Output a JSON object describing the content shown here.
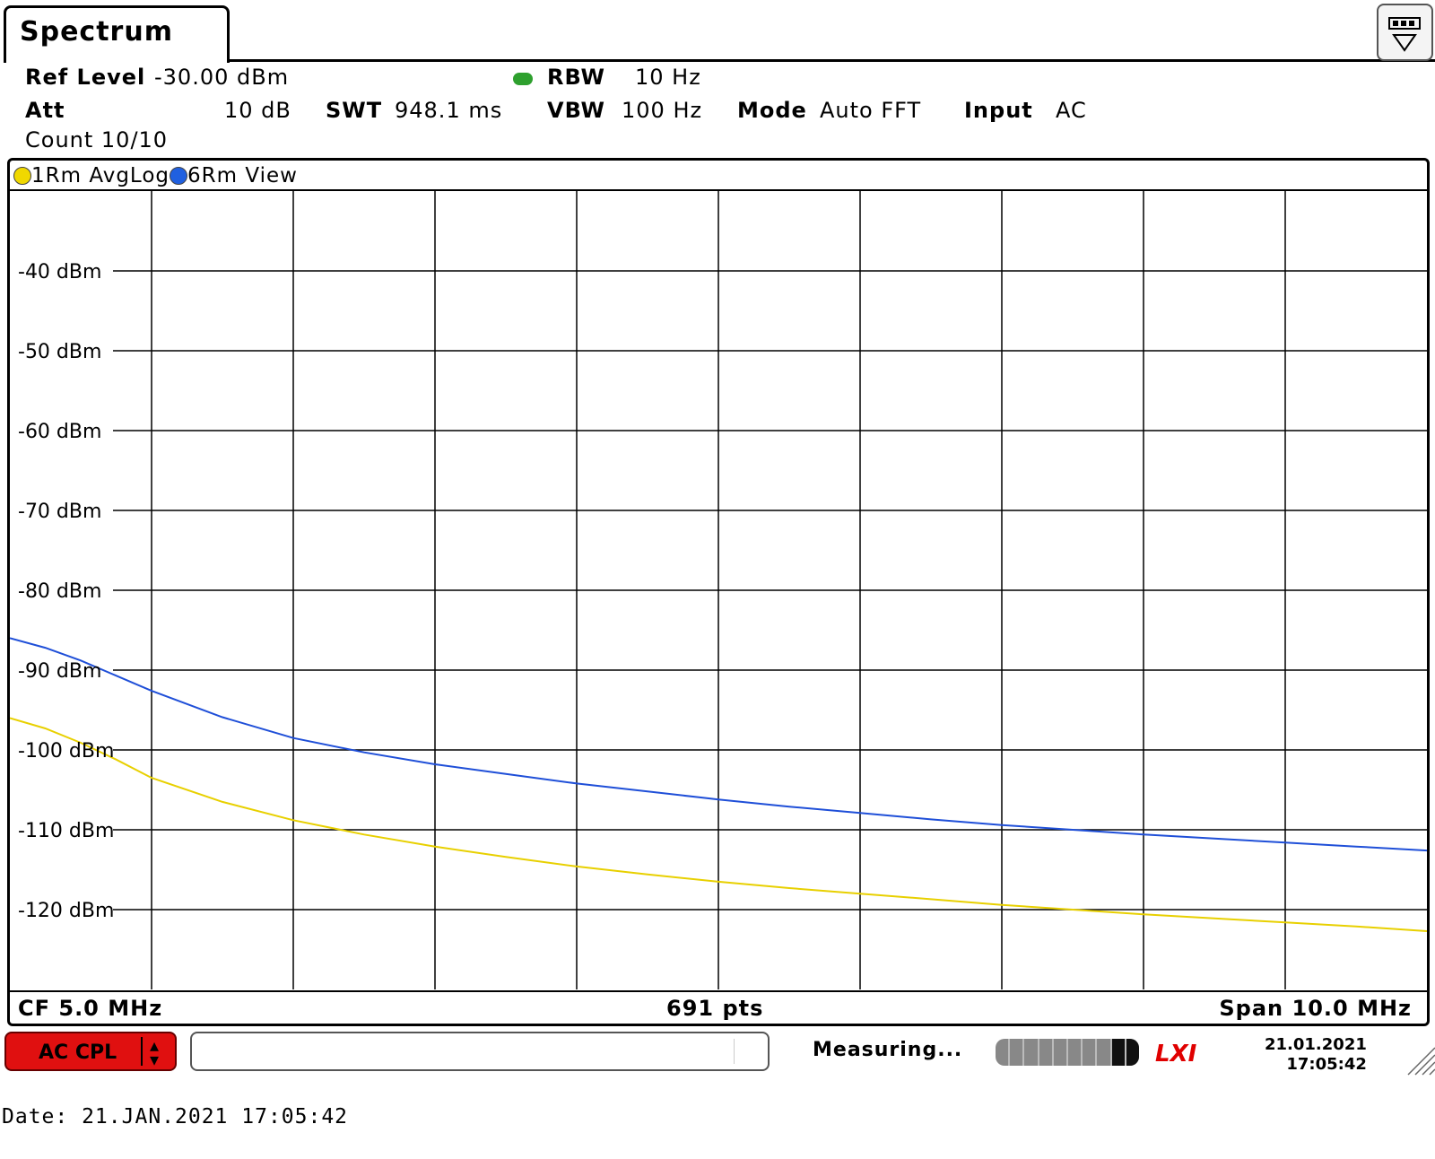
{
  "tab": {
    "title": "Spectrum"
  },
  "header": {
    "ref_level_label": "Ref Level",
    "ref_level_value": "-30.00 dBm",
    "rbw_label": "RBW",
    "rbw_value": "10 Hz",
    "att_label": "Att",
    "att_value": "10 dB",
    "swt_label": "SWT",
    "swt_value": "948.1 ms",
    "vbw_label": "VBW",
    "vbw_value": "100 Hz",
    "mode_label": "Mode",
    "mode_value": "Auto FFT",
    "input_label": "Input",
    "input_value": "AC",
    "count": "Count 10/10"
  },
  "traces": [
    {
      "label": "1Rm AvgLog",
      "color": "#f0d800"
    },
    {
      "label": "6Rm View",
      "color": "#2060e0"
    }
  ],
  "footer": {
    "cf": "CF 5.0 MHz",
    "points": "691 pts",
    "span": "Span 10.0 MHz"
  },
  "status": {
    "ac_cpl": "AC CPL",
    "measuring": "Measuring...",
    "lxi": "LXI",
    "date": "21.01.2021",
    "time": "17:05:42"
  },
  "date_line": "Date: 21.JAN.2021  17:05:42",
  "colors": {
    "trace_yellow": "#e8d000",
    "trace_blue": "#1f4fd8",
    "grid": "#000000"
  },
  "chart_data": {
    "type": "line",
    "x_center_mhz": 5.0,
    "x_span_mhz": 10.0,
    "xlim": [
      0,
      10
    ],
    "ylim": [
      -130,
      -30
    ],
    "y_ticks": [
      -40,
      -50,
      -60,
      -70,
      -80,
      -90,
      -100,
      -110,
      -120
    ],
    "y_tick_labels": [
      "-40 dBm",
      "-50 dBm",
      "-60 dBm",
      "-70 dBm",
      "-80 dBm",
      "-90 dBm",
      "-100 dBm",
      "-110 dBm",
      "-120 dBm"
    ],
    "grid": true,
    "x": [
      0,
      0.25,
      0.5,
      0.75,
      1,
      1.5,
      2,
      2.5,
      3,
      3.5,
      4,
      4.5,
      5,
      5.5,
      6,
      6.5,
      7,
      7.5,
      8,
      8.5,
      9,
      9.5,
      10
    ],
    "series": [
      {
        "name": "6Rm View",
        "values": [
          -86,
          -87.2,
          -88.8,
          -90.7,
          -92.6,
          -95.9,
          -98.5,
          -100.3,
          -101.8,
          -103.0,
          -104.2,
          -105.2,
          -106.2,
          -107.1,
          -107.9,
          -108.7,
          -109.4,
          -110.0,
          -110.6,
          -111.1,
          -111.6,
          -112.1,
          -112.6
        ]
      },
      {
        "name": "1Rm AvgLog",
        "values": [
          -96,
          -97.3,
          -99.1,
          -101.2,
          -103.5,
          -106.5,
          -108.8,
          -110.6,
          -112.1,
          -113.4,
          -114.6,
          -115.6,
          -116.5,
          -117.3,
          -118.0,
          -118.7,
          -119.4,
          -120.0,
          -120.6,
          -121.1,
          -121.6,
          -122.1,
          -122.7
        ]
      }
    ]
  }
}
